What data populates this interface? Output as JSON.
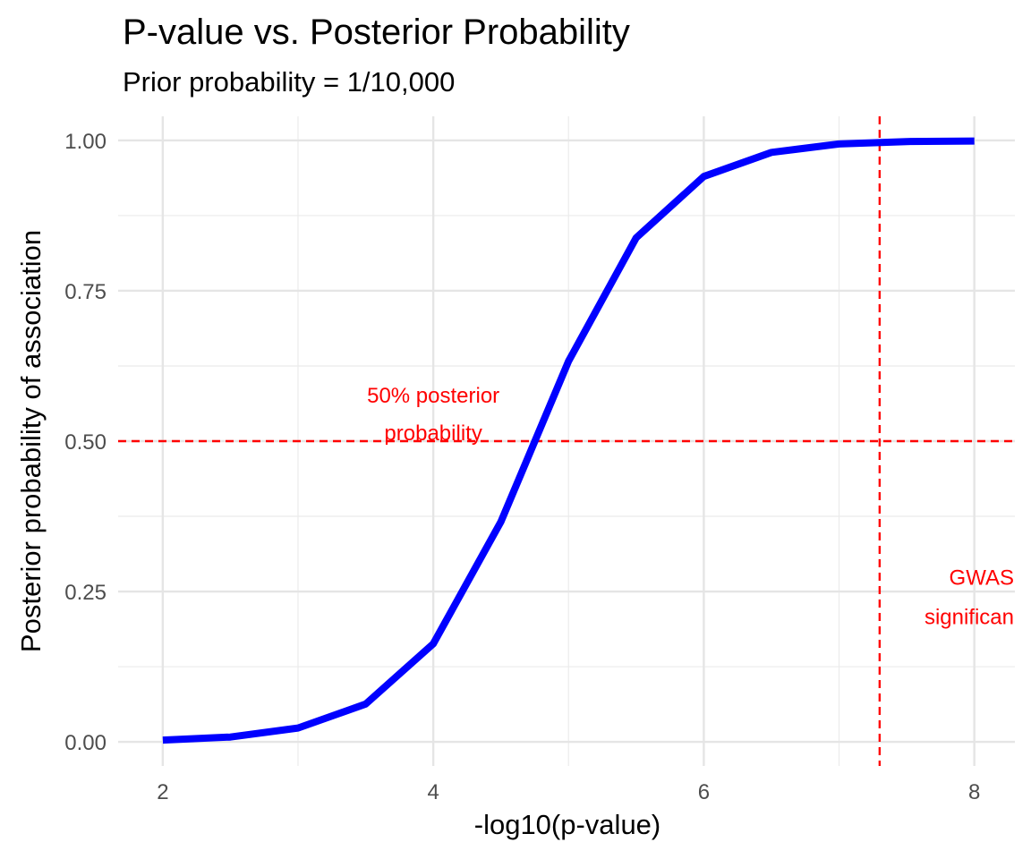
{
  "chart_data": {
    "type": "line",
    "title": "P-value vs. Posterior Probability",
    "subtitle": "Prior probability = 1/10,000",
    "xlabel": "-log10(p-value)",
    "ylabel": "Posterior probability of association",
    "xlim": [
      1.67,
      8.3
    ],
    "ylim": [
      -0.04,
      1.04
    ],
    "x_ticks": [
      2,
      4,
      6,
      8
    ],
    "x_tick_labels": [
      "2",
      "4",
      "6",
      "8"
    ],
    "y_ticks": [
      0,
      0.25,
      0.5,
      0.75,
      1.0
    ],
    "y_tick_labels": [
      "0.00",
      "0.25",
      "0.50",
      "0.75",
      "1.00"
    ],
    "grid": true,
    "series": [
      {
        "color": "#0000ff",
        "x": [
          2,
          2.5,
          3,
          3.5,
          4,
          4.5,
          5,
          5.5,
          6,
          6.5,
          7,
          7.5,
          8
        ],
        "y": [
          0.003,
          0.008,
          0.023,
          0.063,
          0.163,
          0.366,
          0.633,
          0.838,
          0.94,
          0.98,
          0.994,
          0.998,
          0.999
        ]
      }
    ],
    "reference_lines": [
      {
        "orientation": "horizontal",
        "value": 0.5,
        "color": "#ff0000",
        "style": "dashed"
      },
      {
        "orientation": "vertical",
        "value": 7.3,
        "color": "#ff0000",
        "style": "dashed"
      }
    ],
    "annotations": [
      {
        "lines": [
          "50% posterior",
          "probability"
        ],
        "x": 4,
        "y": 0.5,
        "color": "#ff0000"
      },
      {
        "lines": [
          "GWAS",
          "significan"
        ],
        "x": 8.3,
        "y": 0.2,
        "color": "#ff0000"
      }
    ]
  }
}
